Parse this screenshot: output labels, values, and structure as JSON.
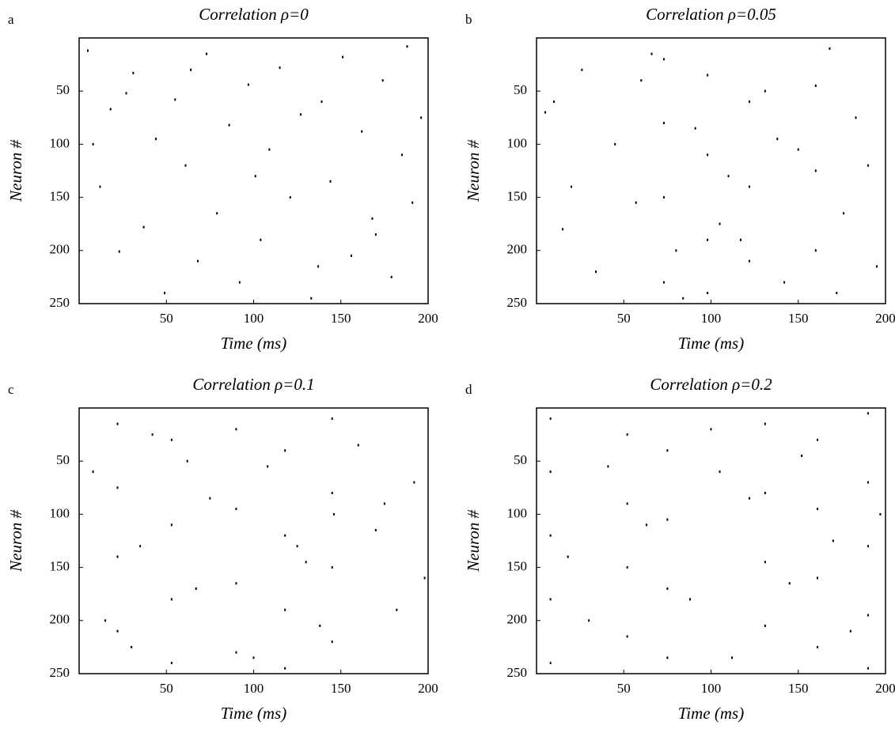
{
  "chart_data": [
    {
      "type": "scatter",
      "panel": "a",
      "title": "Correlation ρ=0",
      "xlabel": "Time (ms)",
      "ylabel": "Neuron #",
      "color": "#000000",
      "xlim": [
        0,
        200
      ],
      "ylim": [
        250,
        0
      ],
      "xticks": [
        50,
        100,
        150,
        200
      ],
      "yticks": [
        50,
        100,
        150,
        200,
        250
      ],
      "x": [
        5,
        12,
        18,
        23,
        31,
        37,
        44,
        49,
        55,
        61,
        68,
        73,
        79,
        86,
        92,
        97,
        104,
        109,
        115,
        121,
        127,
        133,
        139,
        144,
        151,
        156,
        162,
        168,
        174,
        179,
        185,
        191,
        196,
        8,
        27,
        64,
        101,
        137,
        170,
        188
      ],
      "y": [
        12,
        140,
        67,
        201,
        33,
        178,
        95,
        240,
        58,
        120,
        210,
        15,
        165,
        82,
        230,
        44,
        190,
        105,
        28,
        150,
        72,
        245,
        60,
        135,
        18,
        205,
        88,
        170,
        40,
        225,
        110,
        155,
        75,
        100,
        52,
        30,
        130,
        215,
        185,
        8
      ]
    },
    {
      "type": "scatter",
      "panel": "b",
      "title": "Correlation ρ=0.05",
      "xlabel": "Time (ms)",
      "ylabel": "Neuron #",
      "color": "#000000",
      "xlim": [
        0,
        200
      ],
      "ylim": [
        250,
        0
      ],
      "xticks": [
        50,
        100,
        150,
        200
      ],
      "yticks": [
        50,
        100,
        150,
        200,
        250
      ],
      "x": [
        73,
        73,
        73,
        73,
        98,
        98,
        98,
        98,
        122,
        122,
        122,
        160,
        160,
        160,
        5,
        15,
        26,
        34,
        45,
        57,
        66,
        84,
        91,
        110,
        117,
        131,
        142,
        150,
        168,
        176,
        183,
        195,
        20,
        60,
        105,
        138,
        172,
        190,
        10,
        80
      ],
      "y": [
        20,
        80,
        150,
        230,
        35,
        110,
        190,
        240,
        60,
        140,
        210,
        45,
        125,
        200,
        70,
        180,
        30,
        220,
        100,
        155,
        15,
        245,
        85,
        130,
        190,
        50,
        230,
        105,
        10,
        165,
        75,
        215,
        140,
        40,
        175,
        95,
        240,
        120,
        60,
        200
      ]
    },
    {
      "type": "scatter",
      "panel": "c",
      "title": "Correlation ρ=0.1",
      "xlabel": "Time (ms)",
      "ylabel": "Neuron #",
      "color": "#000000",
      "xlim": [
        0,
        200
      ],
      "ylim": [
        250,
        0
      ],
      "xticks": [
        50,
        100,
        150,
        200
      ],
      "yticks": [
        50,
        100,
        150,
        200,
        250
      ],
      "x": [
        22,
        22,
        22,
        22,
        53,
        53,
        53,
        53,
        90,
        90,
        90,
        90,
        118,
        118,
        118,
        118,
        145,
        145,
        145,
        145,
        146,
        8,
        15,
        35,
        42,
        67,
        75,
        100,
        108,
        130,
        138,
        160,
        170,
        182,
        192,
        198,
        30,
        62,
        125,
        175
      ],
      "y": [
        15,
        75,
        140,
        210,
        30,
        110,
        180,
        240,
        20,
        95,
        165,
        230,
        40,
        120,
        190,
        245,
        10,
        80,
        150,
        220,
        100,
        60,
        200,
        130,
        25,
        170,
        85,
        235,
        55,
        145,
        205,
        35,
        115,
        190,
        70,
        160,
        225,
        50,
        130,
        90
      ]
    },
    {
      "type": "scatter",
      "panel": "d",
      "title": "Correlation ρ=0.2",
      "xlabel": "Time (ms)",
      "ylabel": "Neuron #",
      "color": "#000000",
      "xlim": [
        0,
        200
      ],
      "ylim": [
        250,
        0
      ],
      "xticks": [
        50,
        100,
        150,
        200
      ],
      "yticks": [
        50,
        100,
        150,
        200,
        250
      ],
      "x": [
        8,
        8,
        8,
        8,
        8,
        52,
        52,
        52,
        52,
        75,
        75,
        75,
        75,
        131,
        131,
        131,
        131,
        161,
        161,
        161,
        161,
        190,
        190,
        190,
        190,
        190,
        18,
        30,
        41,
        63,
        88,
        100,
        112,
        122,
        145,
        152,
        170,
        180,
        197,
        105
      ],
      "y": [
        10,
        60,
        120,
        180,
        240,
        25,
        90,
        150,
        215,
        40,
        105,
        170,
        235,
        15,
        80,
        145,
        205,
        30,
        95,
        160,
        225,
        5,
        70,
        130,
        195,
        245,
        140,
        200,
        55,
        110,
        180,
        20,
        235,
        85,
        165,
        45,
        125,
        210,
        100,
        60
      ]
    }
  ]
}
